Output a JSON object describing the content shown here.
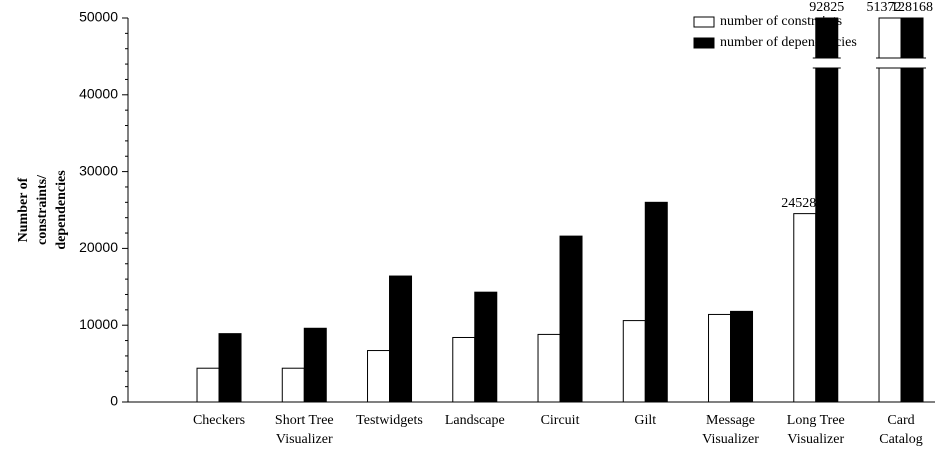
{
  "chart_data": {
    "type": "bar",
    "ylabel": [
      "Number of",
      "constraints/",
      "dependencies"
    ],
    "categories": [
      "Checkers",
      "Short Tree\nVisualizer",
      "Testwidgets",
      "Landscape",
      "Circuit",
      "Gilt",
      "Message\nVisualizer",
      "Long Tree\nVisualizer",
      "Card\nCatalog"
    ],
    "series": [
      {
        "name": "number of constraints",
        "color": "#ffffff",
        "values": [
          4400,
          4400,
          6700,
          8400,
          8800,
          10600,
          11400,
          24528,
          51372
        ],
        "value_labels": [
          null,
          null,
          null,
          null,
          null,
          null,
          null,
          "24528",
          "51372"
        ]
      },
      {
        "name": "number of dependencies",
        "color": "#000000",
        "values": [
          8900,
          9600,
          16400,
          14300,
          21600,
          26000,
          11800,
          92825,
          128168
        ],
        "value_labels": [
          null,
          null,
          null,
          null,
          null,
          null,
          null,
          "92825",
          "128168"
        ]
      }
    ],
    "ylim": [
      0,
      50000
    ],
    "yticks": [
      0,
      10000,
      20000,
      30000,
      40000,
      50000
    ],
    "grid": false,
    "legend": "upper right"
  }
}
